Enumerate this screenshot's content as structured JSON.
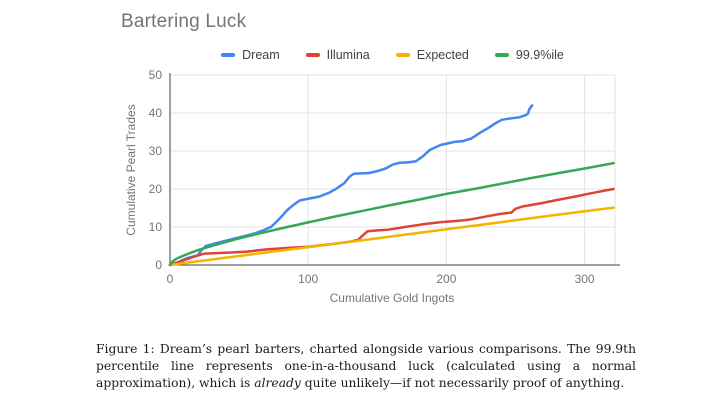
{
  "chart_data": {
    "type": "line",
    "title": "Bartering Luck",
    "xlabel": "Cumulative Gold Ingots",
    "ylabel": "Cumulative Pearl Trades",
    "xlim": [
      0,
      322
    ],
    "ylim": [
      0,
      50
    ],
    "x_ticks": [
      0,
      100,
      200,
      300
    ],
    "y_ticks": [
      0,
      10,
      20,
      30,
      40,
      50
    ],
    "grid": true,
    "legend_position": "top",
    "axis_color": "#424242",
    "gridline_color": "#e3e3e3",
    "tick_label_color": "#757575",
    "series": [
      {
        "name": "Dream",
        "color": "#4285F4",
        "points": [
          [
            0,
            0
          ],
          [
            6,
            0.8
          ],
          [
            12,
            1.8
          ],
          [
            20,
            2.5
          ],
          [
            23,
            4
          ],
          [
            26,
            5
          ],
          [
            34,
            5.8
          ],
          [
            44,
            6.7
          ],
          [
            54,
            7.6
          ],
          [
            62,
            8.4
          ],
          [
            68,
            9.2
          ],
          [
            73,
            10
          ],
          [
            76,
            11
          ],
          [
            80,
            12.5
          ],
          [
            85,
            14.5
          ],
          [
            90,
            16
          ],
          [
            94,
            17
          ],
          [
            101,
            17.5
          ],
          [
            108,
            18
          ],
          [
            115,
            19
          ],
          [
            120,
            20
          ],
          [
            126,
            21.5
          ],
          [
            130,
            23.3
          ],
          [
            133,
            24
          ],
          [
            144,
            24.2
          ],
          [
            150,
            24.7
          ],
          [
            156,
            25.4
          ],
          [
            161,
            26.4
          ],
          [
            166,
            26.9
          ],
          [
            172,
            27
          ],
          [
            178,
            27.3
          ],
          [
            183,
            28.6
          ],
          [
            188,
            30.3
          ],
          [
            196,
            31.6
          ],
          [
            206,
            32.4
          ],
          [
            212,
            32.6
          ],
          [
            218,
            33.3
          ],
          [
            224,
            34.7
          ],
          [
            230,
            36
          ],
          [
            237,
            37.6
          ],
          [
            240,
            38.2
          ],
          [
            247,
            38.6
          ],
          [
            253,
            38.9
          ],
          [
            257,
            39.4
          ],
          [
            259,
            39.8
          ],
          [
            260,
            41
          ],
          [
            262,
            42
          ]
        ]
      },
      {
        "name": "Illumina",
        "color": "#DB4437",
        "points": [
          [
            0,
            0
          ],
          [
            6,
            0.7
          ],
          [
            12,
            1.5
          ],
          [
            18,
            2.3
          ],
          [
            25,
            3
          ],
          [
            40,
            3.2
          ],
          [
            55,
            3.5
          ],
          [
            70,
            4.1
          ],
          [
            86,
            4.5
          ],
          [
            100,
            4.8
          ],
          [
            112,
            5.3
          ],
          [
            122,
            5.7
          ],
          [
            130,
            6.1
          ],
          [
            136,
            6.6
          ],
          [
            139,
            7.6
          ],
          [
            143,
            8.9
          ],
          [
            150,
            9.1
          ],
          [
            158,
            9.3
          ],
          [
            170,
            10
          ],
          [
            183,
            10.7
          ],
          [
            196,
            11.3
          ],
          [
            208,
            11.6
          ],
          [
            216,
            11.9
          ],
          [
            228,
            12.7
          ],
          [
            238,
            13.4
          ],
          [
            247,
            13.8
          ],
          [
            250,
            14.8
          ],
          [
            255,
            15.4
          ],
          [
            268,
            16.2
          ],
          [
            280,
            17.1
          ],
          [
            293,
            18
          ],
          [
            305,
            18.9
          ],
          [
            315,
            19.6
          ],
          [
            321,
            20
          ]
        ]
      },
      {
        "name": "Expected",
        "color": "#F4B400",
        "points": [
          [
            0,
            0
          ],
          [
            40,
            1.9
          ],
          [
            80,
            3.8
          ],
          [
            120,
            5.6
          ],
          [
            160,
            7.5
          ],
          [
            200,
            9.4
          ],
          [
            240,
            11.3
          ],
          [
            280,
            13.2
          ],
          [
            321,
            15.1
          ]
        ]
      },
      {
        "name": "99.9%ile",
        "color": "#34A853",
        "points": [
          [
            0,
            0
          ],
          [
            2,
            1
          ],
          [
            5,
            1.7
          ],
          [
            10,
            2.5
          ],
          [
            15,
            3.2
          ],
          [
            20,
            3.9
          ],
          [
            30,
            5
          ],
          [
            40,
            6
          ],
          [
            50,
            7
          ],
          [
            60,
            7.9
          ],
          [
            80,
            9.6
          ],
          [
            100,
            11.2
          ],
          [
            120,
            12.8
          ],
          [
            140,
            14.3
          ],
          [
            160,
            15.8
          ],
          [
            180,
            17.2
          ],
          [
            200,
            18.7
          ],
          [
            220,
            20
          ],
          [
            240,
            21.4
          ],
          [
            260,
            22.8
          ],
          [
            280,
            24.1
          ],
          [
            300,
            25.4
          ],
          [
            321,
            26.8
          ]
        ]
      }
    ]
  },
  "caption": {
    "part1": "Figure 1: Dream’s pearl barters, charted alongside various comparisons. The 99.9th percentile line represents one-in-a-thousand luck (calculated using a normal approximation), which is ",
    "italic": "already",
    "part2": " quite unlikely—if not necessarily proof of anything."
  }
}
